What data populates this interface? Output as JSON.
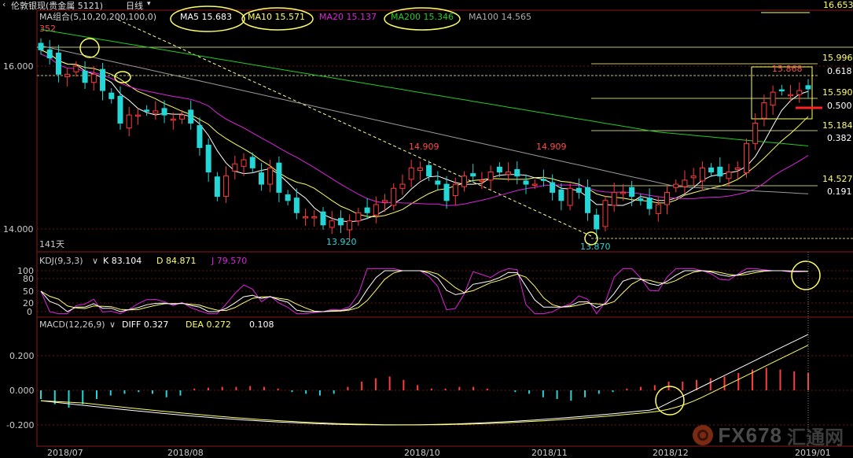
{
  "titlebar": {
    "arrow": "‹",
    "title": "伦敦银现(贵金属 5121)",
    "period": "日线",
    "period_arrow": "▾"
  },
  "main_panel": {
    "legend_prefix": "MA组合(5,10,20,200,100,0)",
    "ma": [
      {
        "label": "MA5 15.683",
        "color": "#ffffff",
        "circled": true
      },
      {
        "label": "MA10 15.571",
        "color": "#ffff66",
        "circled": true
      },
      {
        "label": "MA20 15.137",
        "color": "#dd22dd",
        "circled": false
      },
      {
        "label": "MA200 15.346",
        "color": "#22cc22",
        "circled": true
      },
      {
        "label": "MA100 14.565",
        "color": "#aaaaaa",
        "circled": false
      }
    ],
    "y_ticks": [
      "16.000",
      "14.000"
    ],
    "top_label": "16.653",
    "peak_labels": [
      "15.868",
      "14.909",
      "14.909"
    ],
    "low_labels": [
      "13.920",
      "13.870"
    ],
    "left_label": "352",
    "days_label": "141天",
    "fib_levels": [
      {
        "price": "15.996",
        "ratio": ""
      },
      {
        "price": "",
        "ratio": "0.618"
      },
      {
        "price": "15.590",
        "ratio": "0.500"
      },
      {
        "price": "15.184",
        "ratio": "0.382"
      },
      {
        "price": "14.527",
        "ratio": "0.191"
      }
    ]
  },
  "kdj_panel": {
    "label": "KDJ(9,3,3)",
    "arrow": "∨",
    "k": "K 83.104",
    "d": "D 84.871",
    "j": "J 79.570",
    "y_ticks": [
      "100",
      "80",
      "50",
      "20",
      "0"
    ]
  },
  "macd_panel": {
    "label": "MACD(12,26,9)",
    "arrow": "∨",
    "diff": "DIFF 0.327",
    "dea": "DEA 0.272",
    "macd": "0.108",
    "y_ticks": [
      "0.200",
      "0.000",
      "-0.200"
    ]
  },
  "x_axis": [
    "2018/07",
    "2018/08",
    "2018/10",
    "2018/11",
    "2018/12",
    "2019/01"
  ],
  "watermark": {
    "text": "FX678",
    "cn": "汇通网"
  },
  "colors": {
    "up": "#ff3b3b",
    "down": "#25d6d6",
    "ma5": "#ffffff",
    "ma10": "#ffff66",
    "ma20": "#dd22dd",
    "ma200": "#22cc22",
    "ma100": "#999999",
    "circle": "#ffff66"
  },
  "chart_data": [
    {
      "type": "candlestick",
      "title": "伦敦银现(贵金属 5121) 日线",
      "y_axis_ticks": [
        14.0,
        16.0
      ],
      "ylim": [
        13.7,
        16.7
      ],
      "x_ticks": [
        "2018/07",
        "2018/08",
        "2018/10",
        "2018/11",
        "2018/12",
        "2019/01"
      ],
      "moving_averages": {
        "MA5": 15.683,
        "MA10": 15.571,
        "MA20": 15.137,
        "MA200": 15.346,
        "MA100": 14.565
      },
      "annotations": {
        "high_2019": 15.868,
        "swing_highs": [
          14.909,
          14.909
        ],
        "lows": [
          13.92,
          13.87
        ],
        "top": 16.653
      },
      "fibonacci": [
        {
          "level": 0.618,
          "price": 15.996
        },
        {
          "level": 0.5,
          "price": 15.59
        },
        {
          "level": 0.382,
          "price": 15.184
        },
        {
          "level": 0.191,
          "price": 14.527
        }
      ],
      "close_approx": [
        16.2,
        16.1,
        15.9,
        15.9,
        16.0,
        15.8,
        15.9,
        15.7,
        15.6,
        15.3,
        15.4,
        15.4,
        15.45,
        15.45,
        15.4,
        15.35,
        15.4,
        15.3,
        15.0,
        14.7,
        14.4,
        14.65,
        14.8,
        14.85,
        14.75,
        14.55,
        14.75,
        14.45,
        14.35,
        14.2,
        14.15,
        14.15,
        14.05,
        14.1,
        14.05,
        14.1,
        14.2,
        14.2,
        14.3,
        14.35,
        14.5,
        14.55,
        14.75,
        14.75,
        14.65,
        14.55,
        14.35,
        14.55,
        14.65,
        14.65,
        14.6,
        14.7,
        14.7,
        14.7,
        14.65,
        14.55,
        14.55,
        14.6,
        14.45,
        14.35,
        14.5,
        14.45,
        14.2,
        14.0,
        14.35,
        14.45,
        14.45,
        14.4,
        14.35,
        14.25,
        14.3,
        14.45,
        14.55,
        14.6,
        14.65,
        14.75,
        14.7,
        14.65,
        14.7,
        14.75,
        15.05,
        15.3,
        15.55,
        15.68,
        15.7,
        15.65,
        15.7,
        15.72
      ]
    },
    {
      "type": "line",
      "title": "KDJ(9,3,3)",
      "series": [
        {
          "name": "K",
          "last": 83.104
        },
        {
          "name": "D",
          "last": 84.871
        },
        {
          "name": "J",
          "last": 79.57
        }
      ],
      "y_ticks": [
        0,
        20,
        50,
        80,
        100
      ]
    },
    {
      "type": "bar",
      "title": "MACD(12,26,9)",
      "series": [
        {
          "name": "DIFF",
          "last": 0.327
        },
        {
          "name": "DEA",
          "last": 0.272
        },
        {
          "name": "MACD",
          "last": 0.108
        }
      ],
      "y_ticks": [
        -0.2,
        0.0,
        0.2
      ],
      "macd_approx": [
        -0.05,
        -0.08,
        -0.1,
        -0.08,
        -0.05,
        -0.03,
        -0.02,
        -0.01,
        -0.02,
        -0.04,
        -0.03,
        0.01,
        0.015,
        0.02,
        0.02,
        0.025,
        0.02,
        0.01,
        -0.01,
        -0.02,
        -0.03,
        -0.02,
        0.02,
        0.05,
        0.07,
        0.08,
        0.06,
        0.03,
        0.01,
        0.01,
        0.02,
        0.02,
        0.01,
        0.0,
        -0.01,
        -0.02,
        -0.04,
        -0.05,
        -0.06,
        -0.04,
        -0.02,
        -0.01,
        0.01,
        0.02,
        0.03,
        0.05,
        0.05,
        0.06,
        0.07,
        0.08,
        0.1,
        0.12,
        0.13,
        0.12,
        0.11,
        0.1
      ]
    }
  ]
}
